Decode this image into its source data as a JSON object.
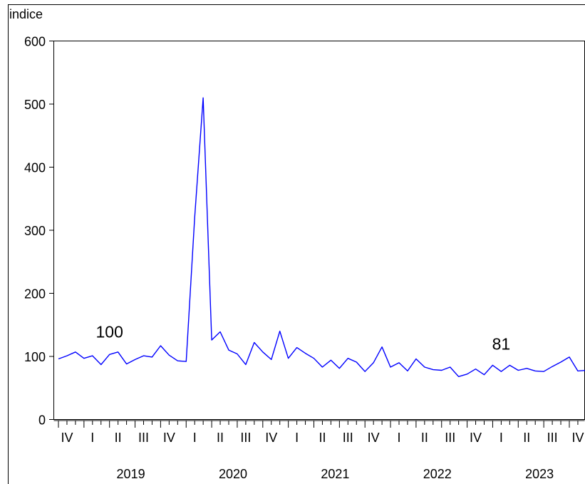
{
  "chart_data": {
    "type": "line",
    "ylabel": "indice",
    "ylim": [
      0,
      600
    ],
    "y_ticks": [
      0,
      100,
      200,
      300,
      400,
      500,
      600
    ],
    "grid": false,
    "series_color": "#0000ff",
    "x_period": "monthly",
    "x_start": "2018-10",
    "x_end": "2023-12",
    "quarter_labels": [
      "IV",
      "I",
      "II",
      "III",
      "IV",
      "I",
      "II",
      "III",
      "IV",
      "I",
      "II",
      "III",
      "IV",
      "I",
      "II",
      "III",
      "IV",
      "I",
      "II",
      "III",
      "IV"
    ],
    "year_labels": [
      "2019",
      "2020",
      "2021",
      "2022",
      "2023"
    ],
    "annotations": [
      {
        "text": "100",
        "x": "2019-04",
        "y": 130
      },
      {
        "text": "81",
        "x": "2023-02",
        "y": 111
      }
    ],
    "series": [
      {
        "values": [
          96,
          101,
          107,
          97,
          101,
          87,
          103,
          107,
          88,
          95,
          101,
          99,
          117,
          102,
          93,
          92,
          320,
          510,
          126,
          139,
          110,
          104,
          87,
          122,
          107,
          95,
          140,
          97,
          114,
          105,
          97,
          83,
          94,
          81,
          97,
          91,
          76,
          90,
          115,
          83,
          90,
          77,
          96,
          83,
          79,
          78,
          83,
          68,
          72,
          80,
          71,
          86,
          76,
          86,
          78,
          81,
          77,
          76,
          84,
          91,
          99,
          77,
          78
        ]
      }
    ]
  }
}
